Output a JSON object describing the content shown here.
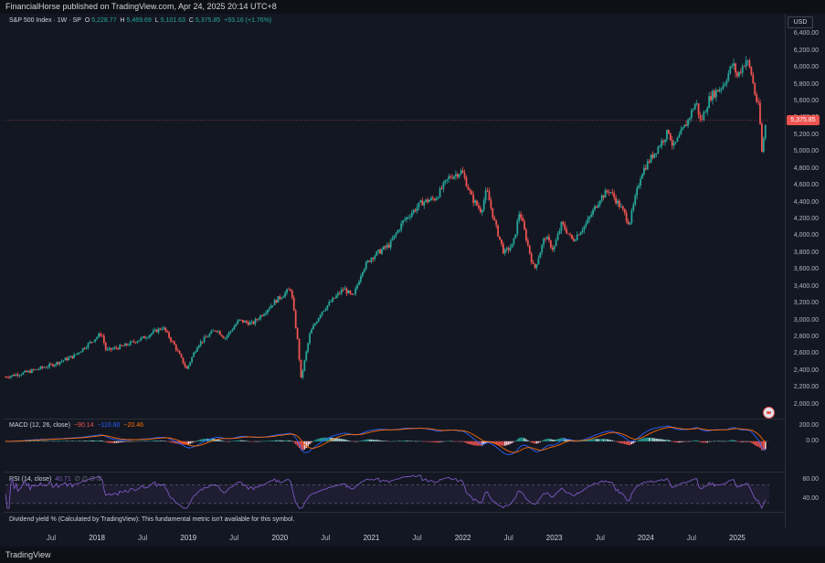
{
  "header": {
    "publisher_text": "FinancialHorse published on TradingView.com, Apr 24, 2025 20:14 UTC+8"
  },
  "legend": {
    "symbol": "S&P 500 Index · 1W · SP",
    "open_label": "O",
    "open": "5,228.77",
    "high_label": "H",
    "high": "5,469.69",
    "low_label": "L",
    "low": "5,101.63",
    "close_label": "C",
    "close": "5,375.85",
    "change": "+93.16 (+1.76%)"
  },
  "macd_legend": {
    "label": "MACD (12, 26, close)",
    "hist": "−90.14",
    "macd": "−110.60",
    "signal": "−20.46"
  },
  "rsi_legend": {
    "label": "RSI (14, close)",
    "value": "40.71",
    "extra": "∅ ∅ ∅ ∅"
  },
  "axis": {
    "currency": "USD",
    "last_price": "5,375.85"
  },
  "dividend_note": "Dividend yield % (Calculated by TradingView): This fundamental metric isn't available for this symbol.",
  "footer": {
    "brand": "TradingView"
  },
  "colors": {
    "up": "#26a69a",
    "down": "#ef5350",
    "macd": "#2962ff",
    "signal": "#ff6d00",
    "rsi": "#7e57c2",
    "bg": "#131722"
  },
  "chart_data": [
    {
      "type": "candlestick",
      "title": "S&P 500 Index · 1W · SP",
      "ylim": [
        1900,
        6500
      ],
      "y_ticks": [
        "6,400.00",
        "6,200.00",
        "6,000.00",
        "5,800.00",
        "5,600.00",
        "5,400.00",
        "5,200.00",
        "5,000.00",
        "4,800.00",
        "4,600.00",
        "4,400.00",
        "4,200.00",
        "4,000.00",
        "3,800.00",
        "3,600.00",
        "3,400.00",
        "3,200.00",
        "3,000.00",
        "2,800.00",
        "2,600.00",
        "2,400.00",
        "2,200.00",
        "2,000.00"
      ],
      "x_labels": [
        "Jul",
        "2018",
        "Jul",
        "2019",
        "Jul",
        "2020",
        "Jul",
        "2021",
        "Jul",
        "2022",
        "Jul",
        "2023",
        "Jul",
        "2024",
        "Jul",
        "2025"
      ],
      "x_years": [
        "2018",
        "2019",
        "2020",
        "2021",
        "2022",
        "2023",
        "2024",
        "2025"
      ],
      "x_start": 2017.0,
      "x_end": 2025.35,
      "closes_anchor": [
        [
          2017.0,
          2330
        ],
        [
          2017.25,
          2390
        ],
        [
          2017.5,
          2470
        ],
        [
          2017.75,
          2580
        ],
        [
          2018.05,
          2850
        ],
        [
          2018.1,
          2640
        ],
        [
          2018.3,
          2700
        ],
        [
          2018.5,
          2790
        ],
        [
          2018.72,
          2920
        ],
        [
          2018.85,
          2700
        ],
        [
          2018.98,
          2420
        ],
        [
          2019.1,
          2710
        ],
        [
          2019.3,
          2900
        ],
        [
          2019.4,
          2790
        ],
        [
          2019.55,
          3000
        ],
        [
          2019.7,
          2960
        ],
        [
          2019.95,
          3230
        ],
        [
          2020.12,
          3380
        ],
        [
          2020.2,
          2700
        ],
        [
          2020.23,
          2300
        ],
        [
          2020.33,
          2850
        ],
        [
          2020.45,
          3100
        ],
        [
          2020.6,
          3270
        ],
        [
          2020.7,
          3380
        ],
        [
          2020.8,
          3270
        ],
        [
          2020.9,
          3600
        ],
        [
          2021.0,
          3750
        ],
        [
          2021.2,
          3900
        ],
        [
          2021.35,
          4180
        ],
        [
          2021.55,
          4400
        ],
        [
          2021.7,
          4450
        ],
        [
          2021.85,
          4700
        ],
        [
          2021.99,
          4770
        ],
        [
          2022.1,
          4450
        ],
        [
          2022.2,
          4300
        ],
        [
          2022.26,
          4550
        ],
        [
          2022.35,
          4150
        ],
        [
          2022.45,
          3800
        ],
        [
          2022.55,
          3900
        ],
        [
          2022.62,
          4300
        ],
        [
          2022.72,
          3850
        ],
        [
          2022.78,
          3600
        ],
        [
          2022.9,
          4000
        ],
        [
          2022.99,
          3840
        ],
        [
          2023.08,
          4150
        ],
        [
          2023.2,
          3950
        ],
        [
          2023.35,
          4150
        ],
        [
          2023.5,
          4450
        ],
        [
          2023.6,
          4550
        ],
        [
          2023.75,
          4300
        ],
        [
          2023.82,
          4150
        ],
        [
          2023.95,
          4750
        ],
        [
          2024.1,
          5000
        ],
        [
          2024.25,
          5250
        ],
        [
          2024.3,
          5050
        ],
        [
          2024.45,
          5350
        ],
        [
          2024.55,
          5600
        ],
        [
          2024.6,
          5350
        ],
        [
          2024.7,
          5650
        ],
        [
          2024.85,
          5800
        ],
        [
          2024.95,
          6050
        ],
        [
          2025.0,
          5900
        ],
        [
          2025.1,
          6100
        ],
        [
          2025.15,
          5950
        ],
        [
          2025.2,
          5650
        ],
        [
          2025.24,
          5500
        ],
        [
          2025.27,
          4980
        ],
        [
          2025.3,
          5280
        ],
        [
          2025.32,
          5375
        ]
      ]
    },
    {
      "type": "line",
      "title": "MACD (12, 26, close)",
      "ylim": [
        -350,
        250
      ],
      "y_ticks": [
        "200.00",
        "0.00"
      ],
      "series": [
        {
          "name": "MACD"
        },
        {
          "name": "Signal"
        },
        {
          "name": "Histogram"
        }
      ]
    },
    {
      "type": "line",
      "title": "RSI (14, close)",
      "ylim": [
        20,
        90
      ],
      "y_ticks": [
        "80.00",
        "40.00"
      ],
      "bands": [
        70,
        30
      ]
    }
  ]
}
